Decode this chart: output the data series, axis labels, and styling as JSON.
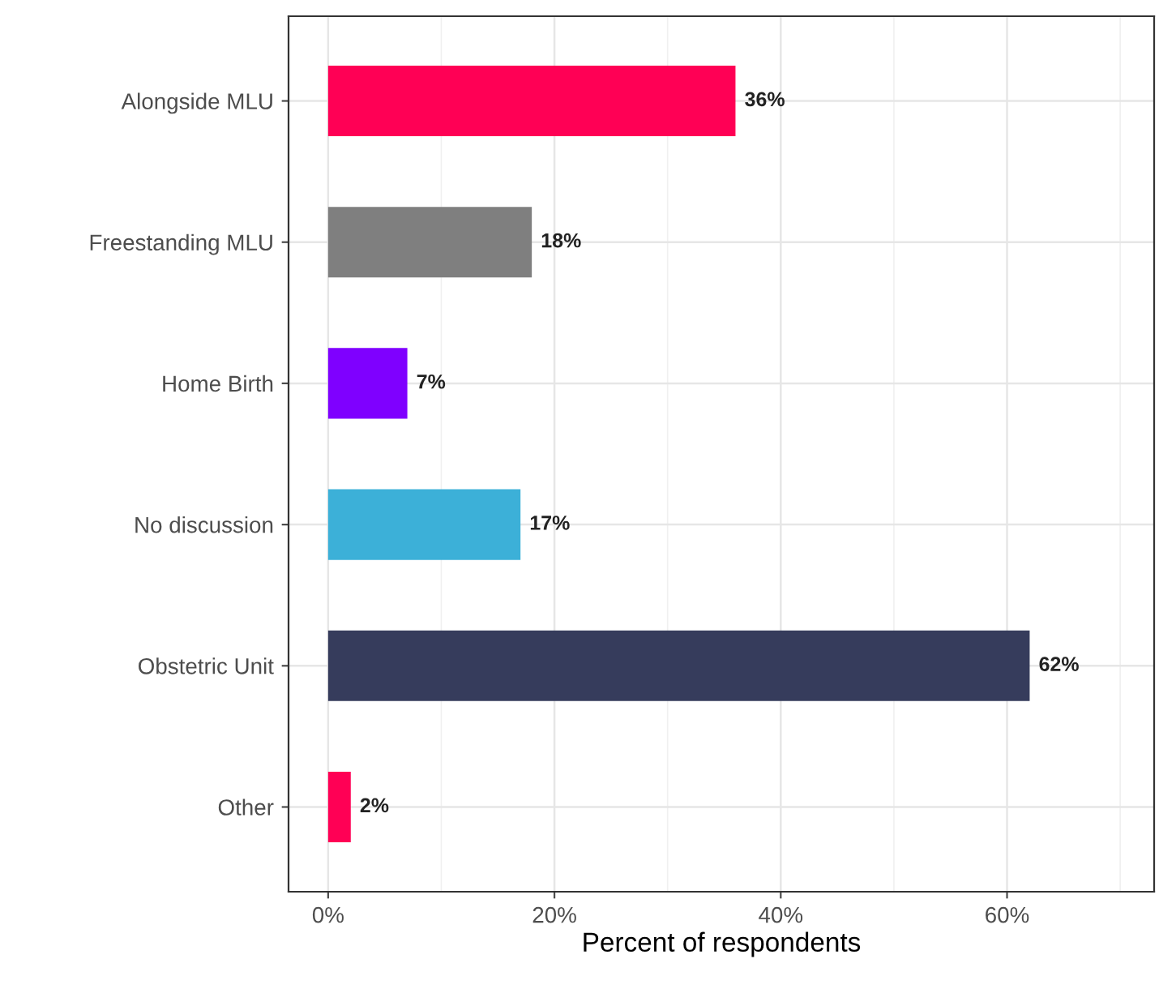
{
  "chart_data": {
    "type": "bar",
    "orientation": "horizontal",
    "xlabel": "Percent of respondents",
    "categories": [
      "Alongside MLU",
      "Freestanding MLU",
      "Home Birth",
      "No discussion",
      "Obstetric Unit",
      "Other"
    ],
    "values": [
      36,
      18,
      7,
      17,
      62,
      2
    ],
    "colors": [
      "#ff0055",
      "#7f7f7f",
      "#7f00ff",
      "#3cb0d8",
      "#363c5c",
      "#ff0055"
    ],
    "value_labels": [
      "36%",
      "18%",
      "7%",
      "17%",
      "62%",
      "2%"
    ],
    "xlim": [
      -3.5,
      73
    ],
    "xticks": [
      {
        "value": 0,
        "label": "0%"
      },
      {
        "value": 20,
        "label": "20%"
      },
      {
        "value": 40,
        "label": "40%"
      },
      {
        "value": 60,
        "label": "60%"
      }
    ],
    "grid": true
  }
}
